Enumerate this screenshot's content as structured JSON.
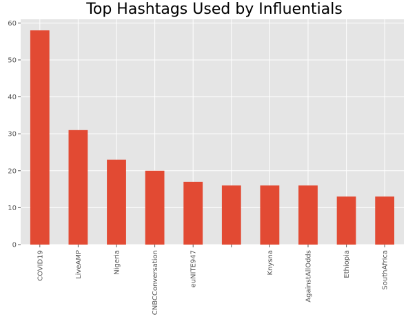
{
  "chart_data": {
    "type": "bar",
    "title": "Top Hashtags Used by Influentials",
    "categories": [
      "COVID19",
      "LiveAMP",
      "Nigeria",
      "CNBCConversation",
      "euNITE947",
      "",
      "Knysna",
      "AgainstAllOdds",
      "Ethiopia",
      "SouthAfrica"
    ],
    "values": [
      58,
      31,
      23,
      20,
      17,
      16,
      16,
      16,
      13,
      13
    ],
    "ylim": [
      0,
      61
    ],
    "yticks": [
      0,
      10,
      20,
      30,
      40,
      50,
      60
    ],
    "grid": true,
    "legend": "none",
    "colors": {
      "bar": "#e24a33",
      "plot_background": "#e5e5e5",
      "grid": "#ffffff",
      "tick_text": "#555555"
    }
  }
}
